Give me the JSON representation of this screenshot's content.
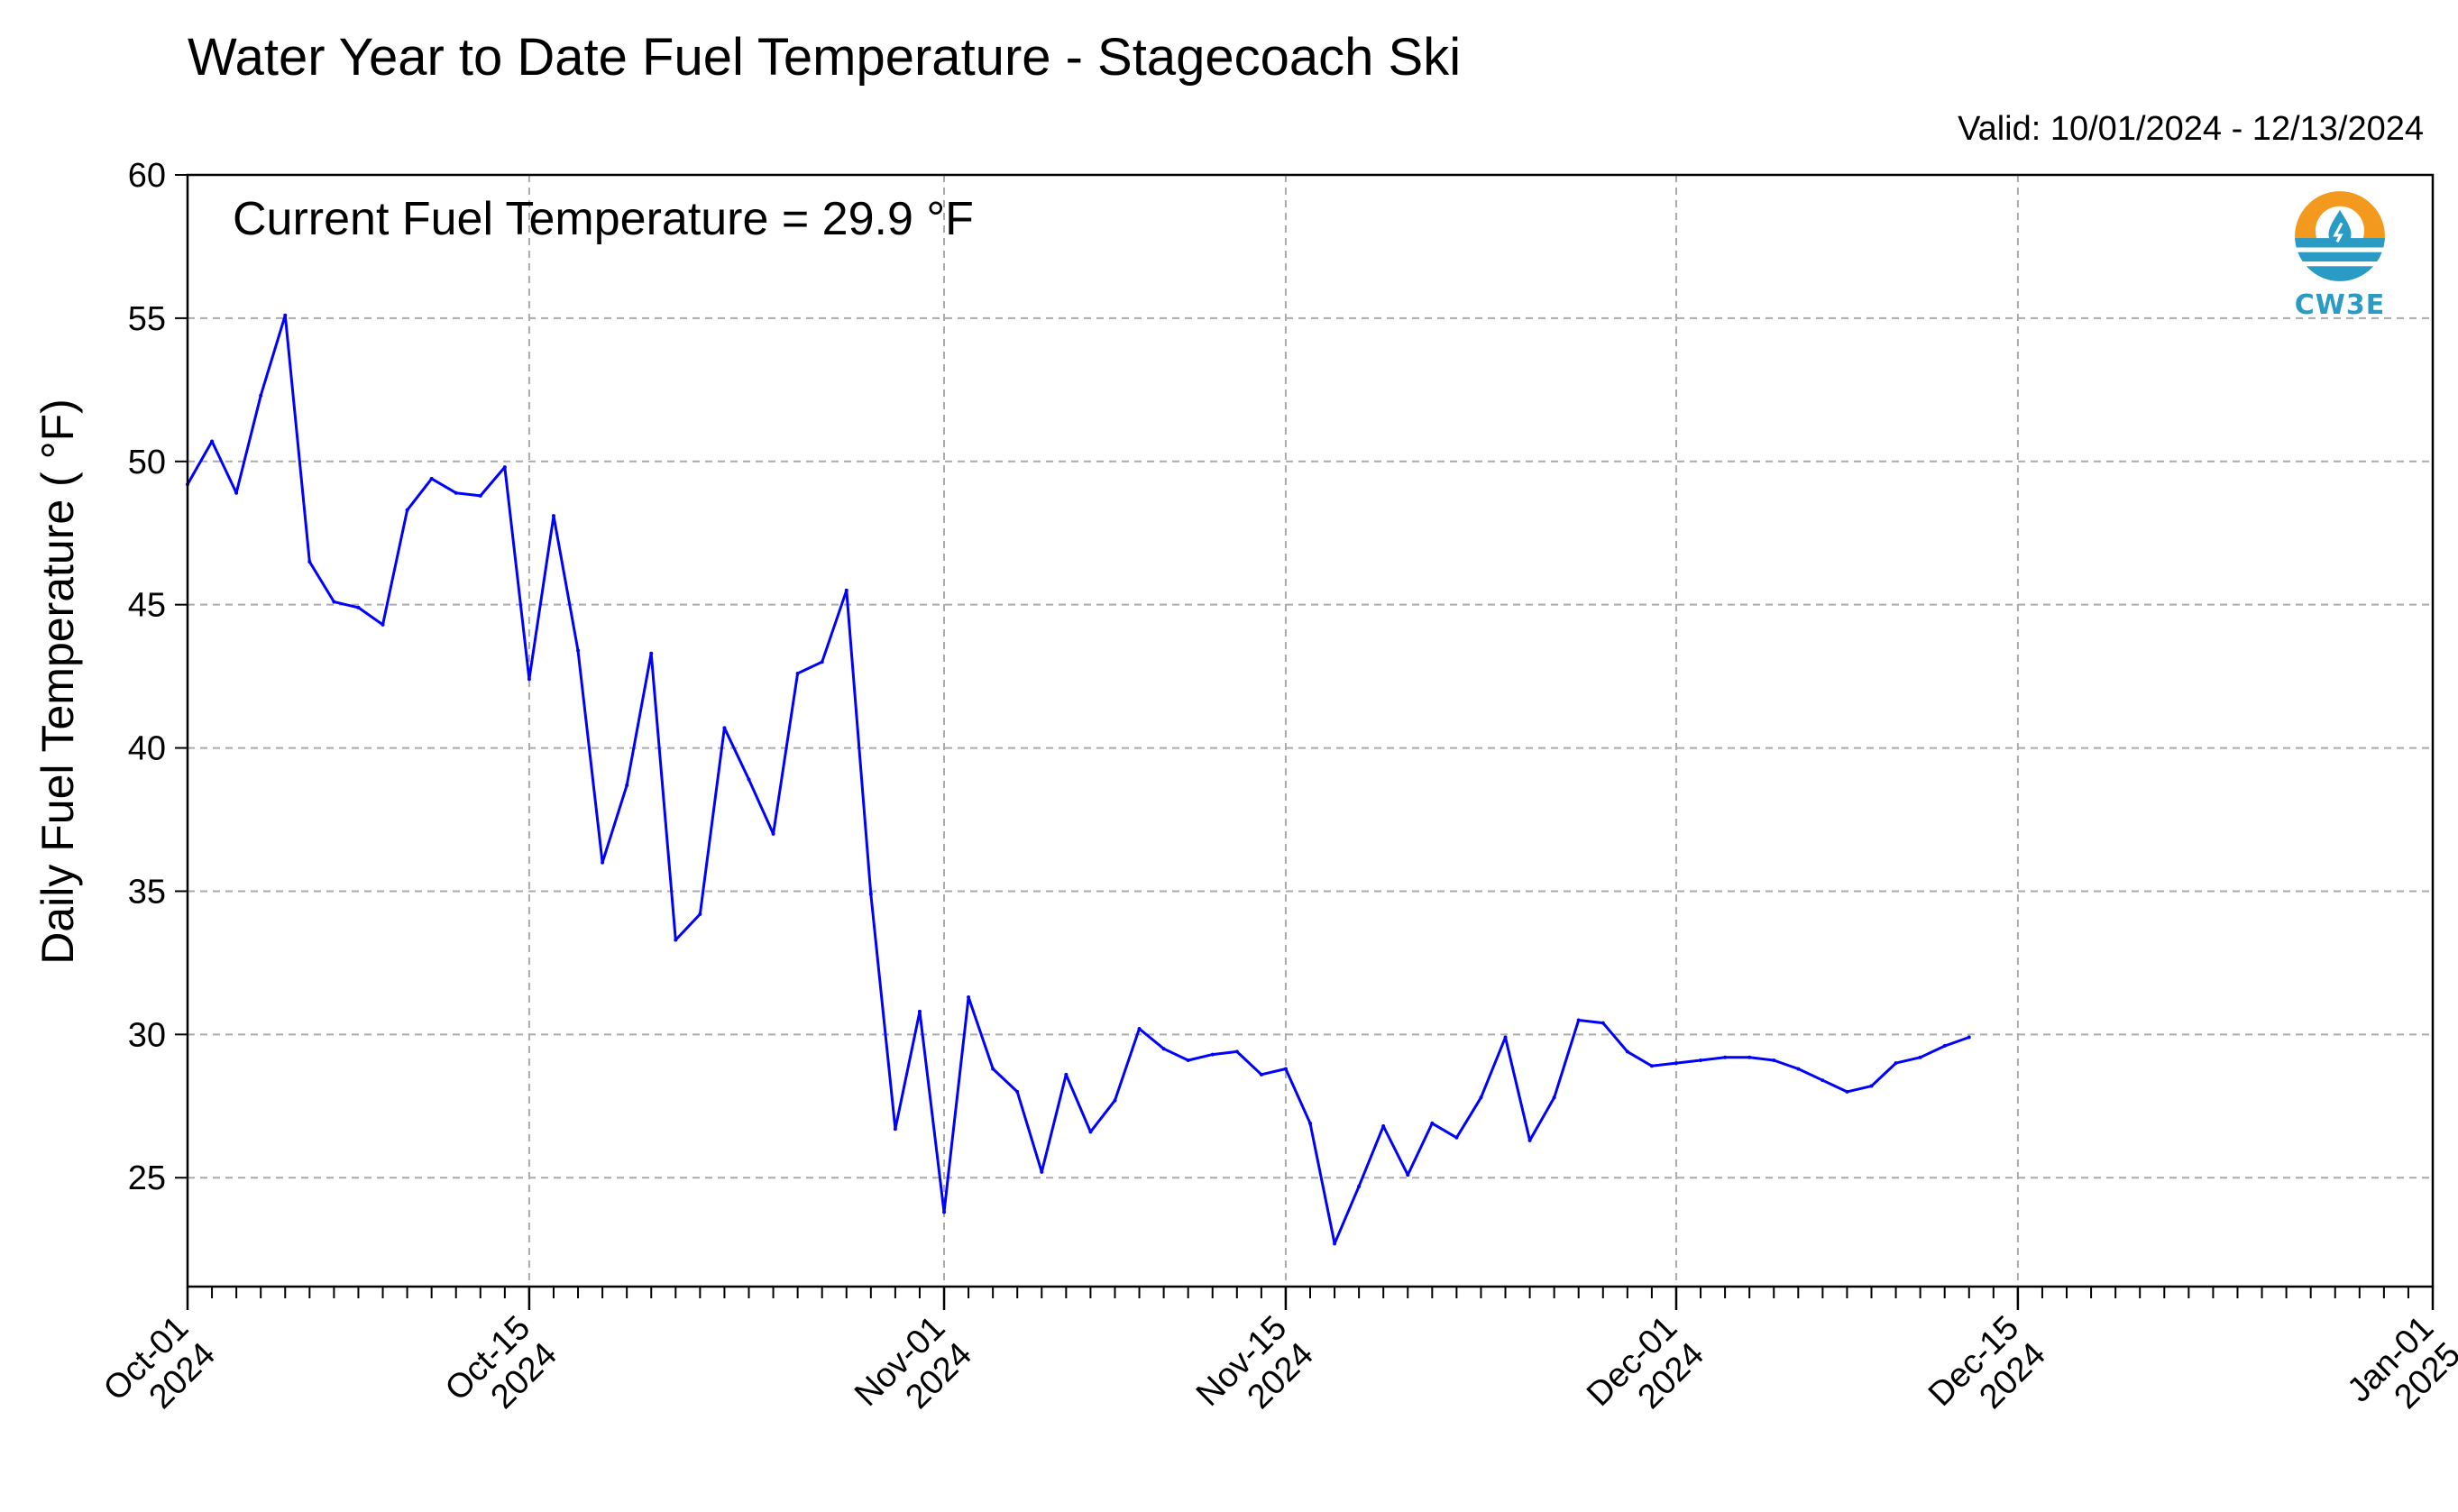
{
  "chart_data": {
    "type": "line",
    "title": "Water Year to Date Fuel Temperature - Stagecoach Ski",
    "subtitle": "Valid: 10/01/2024 - 12/13/2024",
    "annotation": "Current Fuel Temperature = 29.9  °F",
    "ylabel": "Daily Fuel Temperature ( °F)",
    "xlabel": "",
    "xlim": [
      "2024-10-01",
      "2025-01-01"
    ],
    "ylim": [
      21.2,
      60
    ],
    "yticks": [
      25,
      30,
      35,
      40,
      45,
      50,
      55,
      60
    ],
    "xticks": [
      {
        "date": "2024-10-01",
        "label1": "Oct-01",
        "label2": "2024"
      },
      {
        "date": "2024-10-15",
        "label1": "Oct-15",
        "label2": "2024"
      },
      {
        "date": "2024-11-01",
        "label1": "Nov-01",
        "label2": "2024"
      },
      {
        "date": "2024-11-15",
        "label1": "Nov-15",
        "label2": "2024"
      },
      {
        "date": "2024-12-01",
        "label1": "Dec-01",
        "label2": "2024"
      },
      {
        "date": "2024-12-15",
        "label1": "Dec-15",
        "label2": "2024"
      },
      {
        "date": "2025-01-01",
        "label1": "Jan-01",
        "label2": "2025"
      }
    ],
    "grid": true,
    "series": [
      {
        "color": "#0000ff",
        "x": [
          "2024-10-01",
          "2024-10-02",
          "2024-10-03",
          "2024-10-04",
          "2024-10-05",
          "2024-10-06",
          "2024-10-07",
          "2024-10-08",
          "2024-10-09",
          "2024-10-10",
          "2024-10-11",
          "2024-10-12",
          "2024-10-13",
          "2024-10-14",
          "2024-10-15",
          "2024-10-16",
          "2024-10-17",
          "2024-10-18",
          "2024-10-19",
          "2024-10-20",
          "2024-10-21",
          "2024-10-22",
          "2024-10-23",
          "2024-10-24",
          "2024-10-25",
          "2024-10-26",
          "2024-10-27",
          "2024-10-28",
          "2024-10-29",
          "2024-10-30",
          "2024-10-31",
          "2024-11-01",
          "2024-11-02",
          "2024-11-03",
          "2024-11-04",
          "2024-11-05",
          "2024-11-06",
          "2024-11-07",
          "2024-11-08",
          "2024-11-09",
          "2024-11-10",
          "2024-11-11",
          "2024-11-12",
          "2024-11-13",
          "2024-11-14",
          "2024-11-15",
          "2024-11-16",
          "2024-11-17",
          "2024-11-18",
          "2024-11-19",
          "2024-11-20",
          "2024-11-21",
          "2024-11-22",
          "2024-11-23",
          "2024-11-24",
          "2024-11-25",
          "2024-11-26",
          "2024-11-27",
          "2024-11-28",
          "2024-11-29",
          "2024-11-30",
          "2024-12-01",
          "2024-12-02",
          "2024-12-03",
          "2024-12-04",
          "2024-12-05",
          "2024-12-06",
          "2024-12-07",
          "2024-12-08",
          "2024-12-09",
          "2024-12-10",
          "2024-12-11",
          "2024-12-12",
          "2024-12-13"
        ],
        "y": [
          49.2,
          50.7,
          48.9,
          52.3,
          55.1,
          46.5,
          45.1,
          44.9,
          44.3,
          48.3,
          49.4,
          48.9,
          48.8,
          49.8,
          42.4,
          48.1,
          43.4,
          36.0,
          38.7,
          43.3,
          33.3,
          34.2,
          40.7,
          38.9,
          37.0,
          42.6,
          43.0,
          45.5,
          34.9,
          26.7,
          30.8,
          23.8,
          31.3,
          28.8,
          28.0,
          25.2,
          28.6,
          26.6,
          27.7,
          30.2,
          29.5,
          29.1,
          29.3,
          29.4,
          28.6,
          28.8,
          26.9,
          22.7,
          24.7,
          26.8,
          25.1,
          26.9,
          26.4,
          27.8,
          29.9,
          26.3,
          27.8,
          30.5,
          30.4,
          29.4,
          28.9,
          29.0,
          29.1,
          29.2,
          29.2,
          29.1,
          28.8,
          28.4,
          28.0,
          28.2,
          29.0,
          29.2,
          29.6,
          29.9
        ]
      }
    ]
  },
  "logo": {
    "text": "CW3E",
    "orange": "#f39a1e",
    "blue": "#2a9bc4"
  }
}
